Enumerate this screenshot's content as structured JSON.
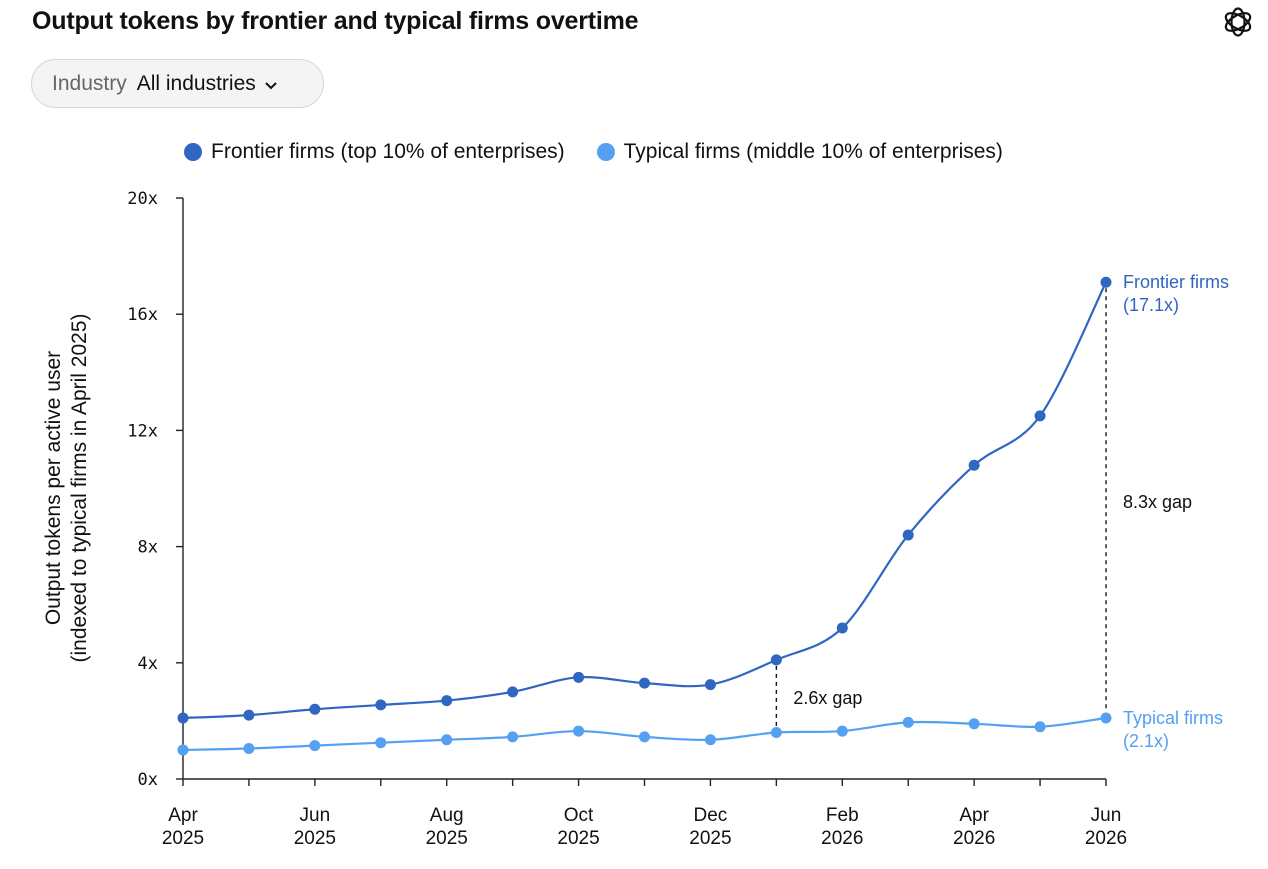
{
  "title": "Output tokens by frontier and typical firms overtime",
  "logo_icon": "openai-logo-icon",
  "filter": {
    "label": "Industry",
    "value": "All industries",
    "icon": "chevron-down-icon"
  },
  "colors": {
    "frontier": "#2f66c2",
    "typical": "#55a0f0",
    "axis": "#222222"
  },
  "chart_data": {
    "type": "line",
    "ylabel": [
      "Output tokens per active user",
      "(indexed to typical firms in April 2025)"
    ],
    "xlabel": "",
    "ylim": [
      0,
      20
    ],
    "yticks": [
      "0x",
      "4x",
      "8x",
      "12x",
      "16x",
      "20x"
    ],
    "x": [
      "Apr 2025",
      "May 2025",
      "Jun 2025",
      "Jul 2025",
      "Aug 2025",
      "Sep 2025",
      "Oct 2025",
      "Nov 2025",
      "Dec 2025",
      "Jan 2026",
      "Feb 2026",
      "Mar 2026",
      "Apr 2026",
      "May 2026",
      "Jun 2026"
    ],
    "xtick_labels": [
      [
        "Apr",
        "2025"
      ],
      [
        "Jun",
        "2025"
      ],
      [
        "Aug",
        "2025"
      ],
      [
        "Oct",
        "2025"
      ],
      [
        "Dec",
        "2025"
      ],
      [
        "Feb",
        "2026"
      ],
      [
        "Apr",
        "2026"
      ],
      [
        "Jun",
        "2026"
      ]
    ],
    "legend": "top",
    "series": [
      {
        "name": "Frontier firms (top 10% of enterprises)",
        "values": [
          2.1,
          2.2,
          2.4,
          2.55,
          2.7,
          3.0,
          3.5,
          3.3,
          3.25,
          4.1,
          5.2,
          8.4,
          10.8,
          12.5,
          17.1
        ]
      },
      {
        "name": "Typical firms (middle 10% of enterprises)",
        "values": [
          1.0,
          1.05,
          1.15,
          1.25,
          1.35,
          1.45,
          1.65,
          1.45,
          1.35,
          1.6,
          1.65,
          1.95,
          1.9,
          1.8,
          2.1
        ]
      }
    ],
    "end_labels": [
      {
        "series": 0,
        "lines": [
          "Frontier firms",
          "(17.1x)"
        ]
      },
      {
        "series": 1,
        "lines": [
          "Typical firms",
          "(2.1x)"
        ]
      }
    ],
    "annotations": [
      {
        "index": 9,
        "text": "2.6x gap"
      },
      {
        "index": 14,
        "text": "8.3x gap"
      }
    ]
  }
}
